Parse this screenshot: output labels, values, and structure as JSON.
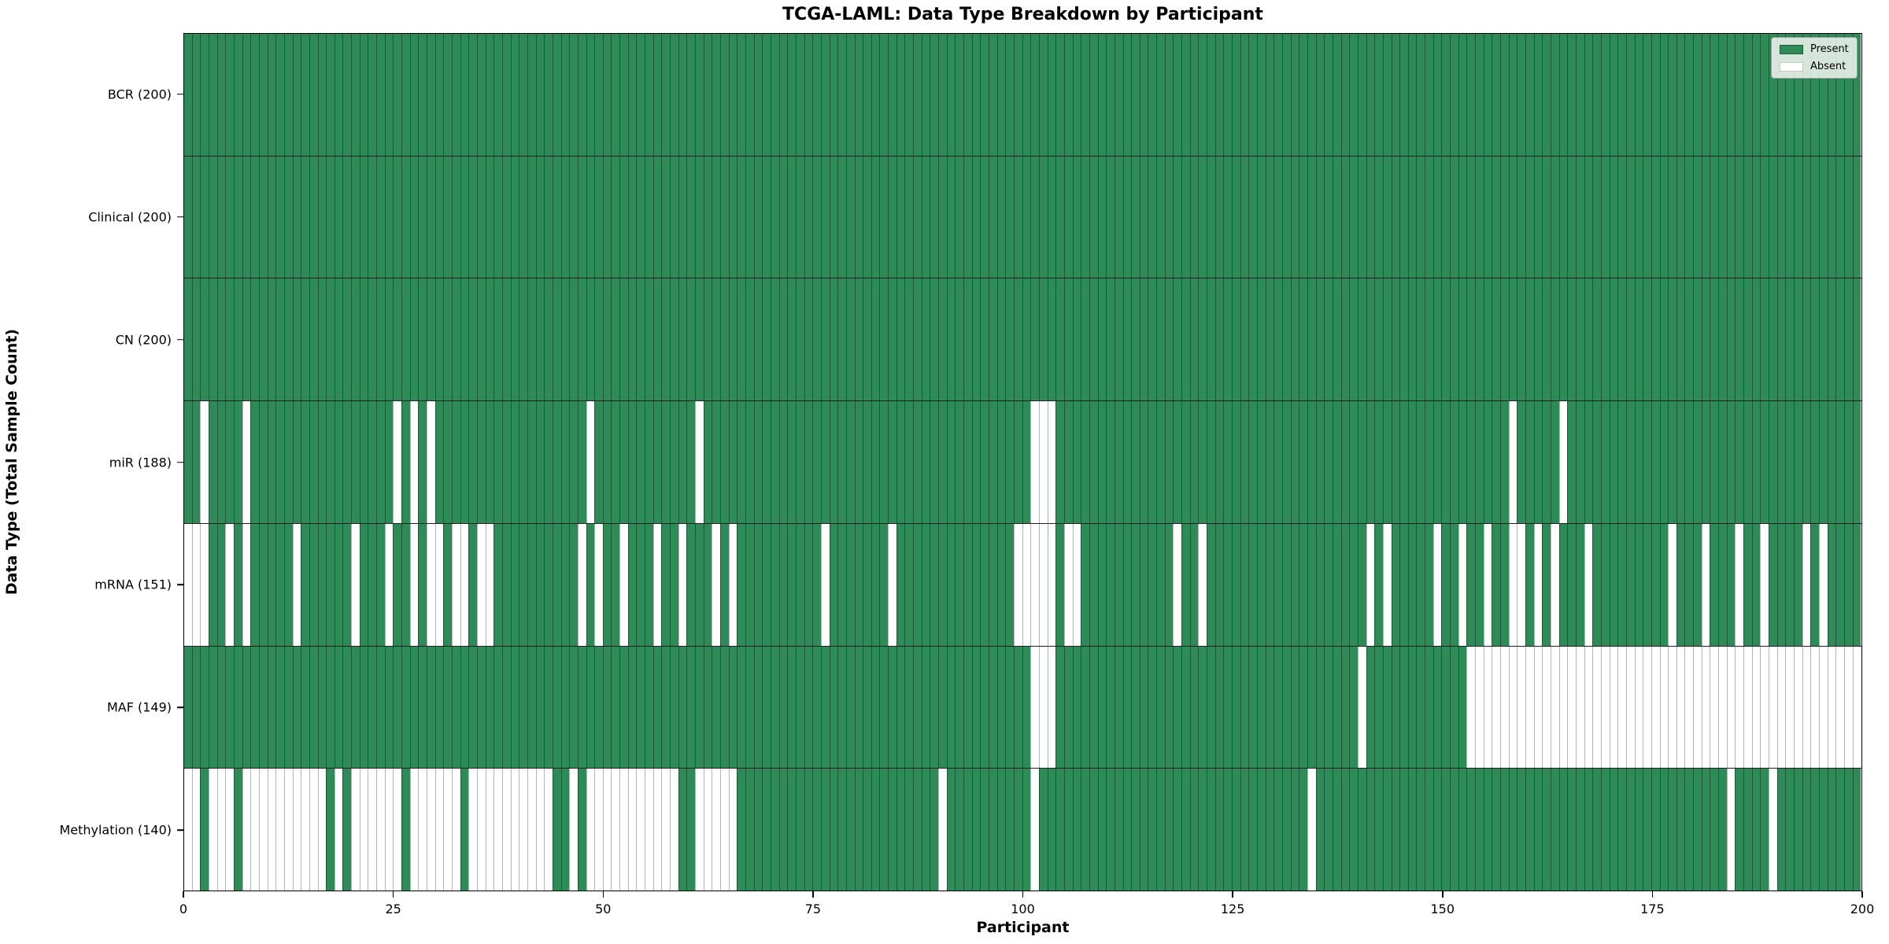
{
  "title": "TCGA-LAML: Data Type Breakdown by Participant",
  "xlabel": "Participant",
  "ylabel": "Data Type (Total Sample Count)",
  "legend": {
    "present_label": "Present",
    "absent_label": "Absent",
    "position": "upper right"
  },
  "colors": {
    "present": "#2e8b57",
    "absent": "#ffffff",
    "frame": "#000000"
  },
  "chart_data": {
    "type": "heatmap",
    "n_participants": 200,
    "x_axis_range": [
      0,
      200
    ],
    "x_ticks": [
      0,
      25,
      50,
      75,
      100,
      125,
      150,
      175,
      200
    ],
    "grid": false,
    "cell_states": [
      "Present",
      "Absent"
    ],
    "rows": [
      {
        "label": "BCR (200)",
        "data_type": "BCR",
        "present_count": 200,
        "absent_participants": []
      },
      {
        "label": "Clinical (200)",
        "data_type": "Clinical",
        "present_count": 200,
        "absent_participants": []
      },
      {
        "label": "CN (200)",
        "data_type": "CN",
        "present_count": 200,
        "absent_participants": []
      },
      {
        "label": "miR (188)",
        "data_type": "miR",
        "present_count": 188,
        "absent_participants": [
          2,
          7,
          25,
          27,
          29,
          48,
          61,
          101,
          102,
          103,
          158,
          164
        ]
      },
      {
        "label": "mRNA (151)",
        "data_type": "mRNA",
        "present_count": 151,
        "absent_participants": [
          0,
          1,
          2,
          5,
          7,
          13,
          20,
          24,
          27,
          29,
          30,
          32,
          33,
          35,
          36,
          47,
          49,
          52,
          56,
          59,
          63,
          65,
          76,
          84,
          99,
          100,
          101,
          102,
          103,
          105,
          106,
          118,
          121,
          141,
          143,
          149,
          152,
          155,
          158,
          159,
          161,
          163,
          167,
          177,
          181,
          185,
          188,
          193,
          195
        ]
      },
      {
        "label": "MAF (149)",
        "data_type": "MAF",
        "present_count": 149,
        "absent_participants": [
          101,
          102,
          103,
          140,
          153,
          154,
          155,
          156,
          157,
          158,
          159,
          160,
          161,
          162,
          163,
          164,
          165,
          166,
          167,
          168,
          169,
          170,
          171,
          172,
          173,
          174,
          175,
          176,
          177,
          178,
          179,
          180,
          181,
          182,
          183,
          184,
          185,
          186,
          187,
          188,
          189,
          190,
          191,
          192,
          193,
          194,
          195,
          196,
          197,
          198,
          199
        ]
      },
      {
        "label": "Methylation (140)",
        "data_type": "Methylation",
        "present_count": 140,
        "absent_participants": [
          0,
          1,
          3,
          4,
          5,
          7,
          8,
          9,
          10,
          11,
          12,
          13,
          14,
          15,
          16,
          18,
          20,
          21,
          22,
          23,
          24,
          25,
          27,
          28,
          29,
          30,
          31,
          32,
          34,
          35,
          36,
          37,
          38,
          39,
          40,
          41,
          42,
          43,
          46,
          48,
          49,
          50,
          51,
          52,
          53,
          54,
          55,
          56,
          57,
          58,
          61,
          62,
          63,
          64,
          65,
          90,
          101,
          134,
          184,
          189
        ]
      }
    ]
  }
}
